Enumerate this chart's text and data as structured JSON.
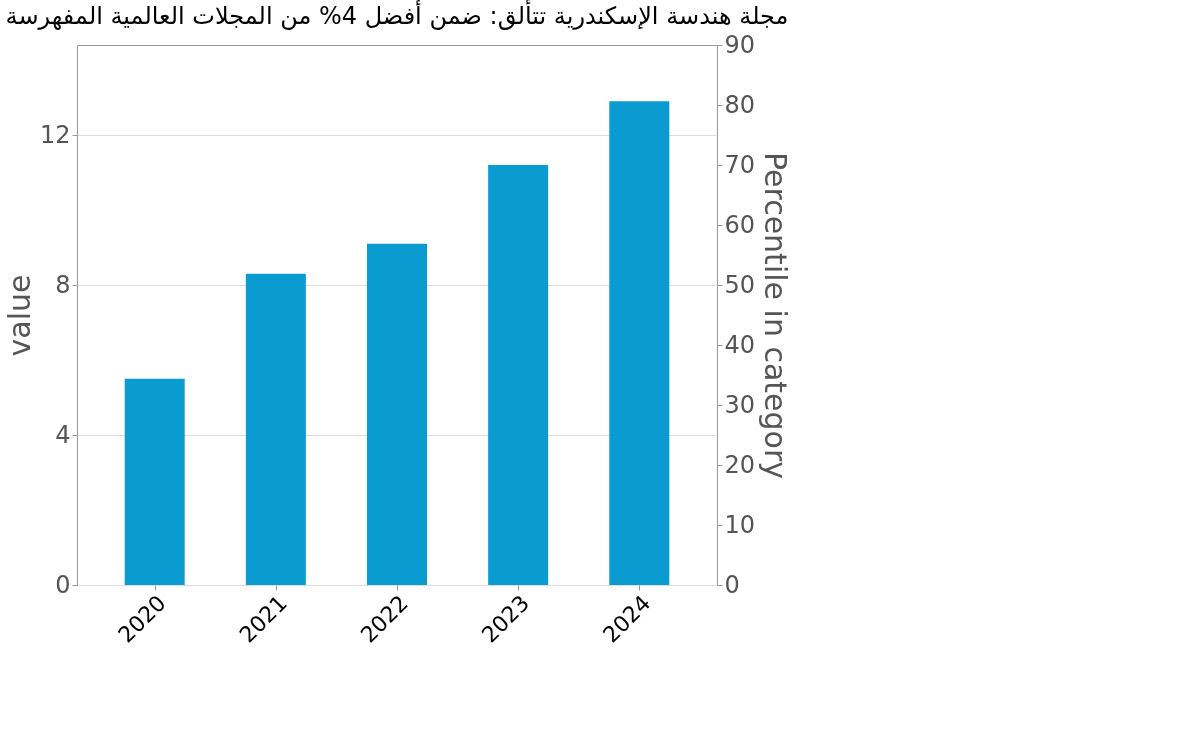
{
  "chart_data": {
    "type": "bar",
    "title": "مجلة هندسة الإسكندرية تتألق: ضمن أفضل 4% من المجلات العالمية المفهرسة",
    "categories": [
      "2020",
      "2021",
      "2022",
      "2023",
      "2024"
    ],
    "values": [
      5.5,
      8.3,
      9.1,
      11.2,
      12.9
    ],
    "color": "#0a9bd0",
    "ylabel": "value",
    "y2label": "Percentile in category",
    "ylim": [
      0,
      14.4
    ],
    "yticks": [
      0,
      4,
      8,
      12
    ],
    "y2lim": [
      0,
      90
    ],
    "y2ticks": [
      0,
      10,
      20,
      30,
      40,
      50,
      60,
      70,
      80,
      90
    ],
    "grid": "y"
  }
}
